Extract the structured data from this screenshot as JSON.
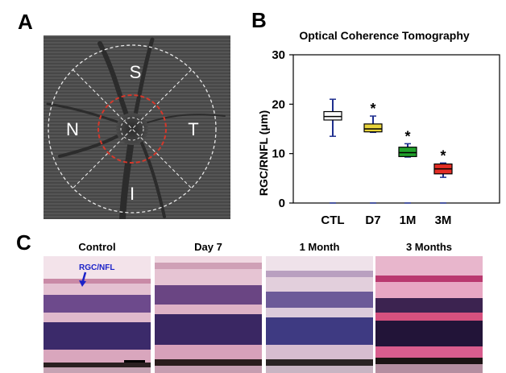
{
  "figure": {
    "panel_a_letter": "A",
    "panel_b_letter": "B",
    "panel_c_letter": "C"
  },
  "fundus": {
    "labels": {
      "superior": "S",
      "nasal": "N",
      "temporal": "T",
      "inferior": "I"
    },
    "colors": {
      "outer_ring": "#e8e8e8",
      "inner_ring": "#d4382b"
    }
  },
  "chart_data": {
    "type": "box",
    "title": "Optical Coherence Tomography",
    "ylabel": "RGC/RNFL (μm)",
    "xlabel": "",
    "ylim": [
      0,
      30
    ],
    "yticks": [
      "0",
      "10",
      "20",
      "30"
    ],
    "categories": [
      "CTL",
      "D7",
      "1M",
      "3M"
    ],
    "boxes": [
      {
        "name": "CTL",
        "min": 13.5,
        "q1": 16.8,
        "median": 17.5,
        "q3": 18.5,
        "max": 21,
        "color": "#ffffff",
        "significance": ""
      },
      {
        "name": "D7",
        "min": 14.3,
        "q1": 14.4,
        "median": 15.0,
        "q3": 16.0,
        "max": 17.6,
        "color": "#e8d43c",
        "significance": "*"
      },
      {
        "name": "1M",
        "min": 9.3,
        "q1": 9.4,
        "median": 10.2,
        "q3": 11.3,
        "max": 12.0,
        "color": "#21a22c",
        "significance": "*"
      },
      {
        "name": "3M",
        "min": 5.2,
        "q1": 5.9,
        "median": 6.9,
        "q3": 7.9,
        "max": 8.1,
        "color": "#e42d25",
        "significance": "*"
      }
    ],
    "zero_markers": [
      0,
      0,
      0,
      0
    ],
    "whisker_color": "#1f2f8f",
    "grid": false,
    "legend": "none"
  },
  "histology": {
    "panels": [
      {
        "title": "Control"
      },
      {
        "title": "Day 7"
      },
      {
        "title": "1 Month"
      },
      {
        "title": "3 Months"
      }
    ],
    "rgc_label": "RGC/NFL",
    "arrow_color": "#1b22c8"
  }
}
